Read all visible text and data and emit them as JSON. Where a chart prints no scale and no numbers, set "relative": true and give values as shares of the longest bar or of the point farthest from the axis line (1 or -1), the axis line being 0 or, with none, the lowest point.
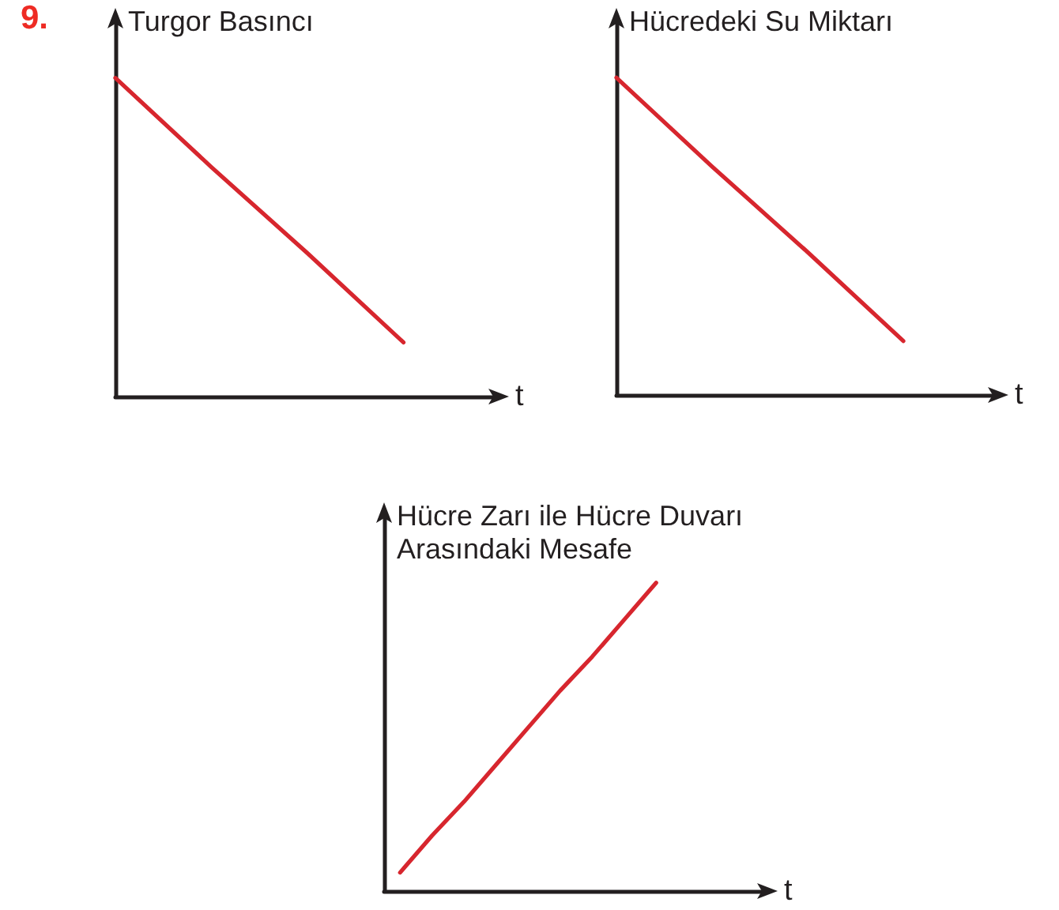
{
  "chart_data": [
    {
      "type": "line",
      "ylabel": "Turgor Basıncı",
      "xlabel": "t",
      "annotations": [
        "9."
      ],
      "categories": [
        null,
        null,
        null,
        null,
        null
      ],
      "series": [
        {
          "color": "#d7262e",
          "values": [
            1,
            0.72,
            0.45,
            0.17,
            null
          ]
        }
      ],
      "relative": true
    },
    {
      "type": "line",
      "ylabel": "Hücredeki Su Miktarı",
      "xlabel": "t",
      "categories": [
        null,
        null,
        null,
        null,
        null
      ],
      "series": [
        {
          "color": "#d7262e",
          "values": [
            1,
            0.72,
            0.45,
            0.17,
            null
          ]
        }
      ],
      "relative": true
    },
    {
      "type": "line",
      "ylabel": "Hücre Zarı ile Hücre Duvarı Arasındaki Mesafe",
      "xlabel": "t",
      "categories": [
        null,
        null,
        null,
        null,
        null,
        null,
        null,
        null,
        null,
        null,
        null,
        null
      ],
      "series": [
        {
          "color": "#d7262e",
          "values": [
            0.06,
            0.18,
            0.29,
            0.41,
            0.53,
            0.65,
            0.76,
            0.88,
            1,
            null,
            null,
            null
          ]
        }
      ],
      "relative": true
    }
  ]
}
